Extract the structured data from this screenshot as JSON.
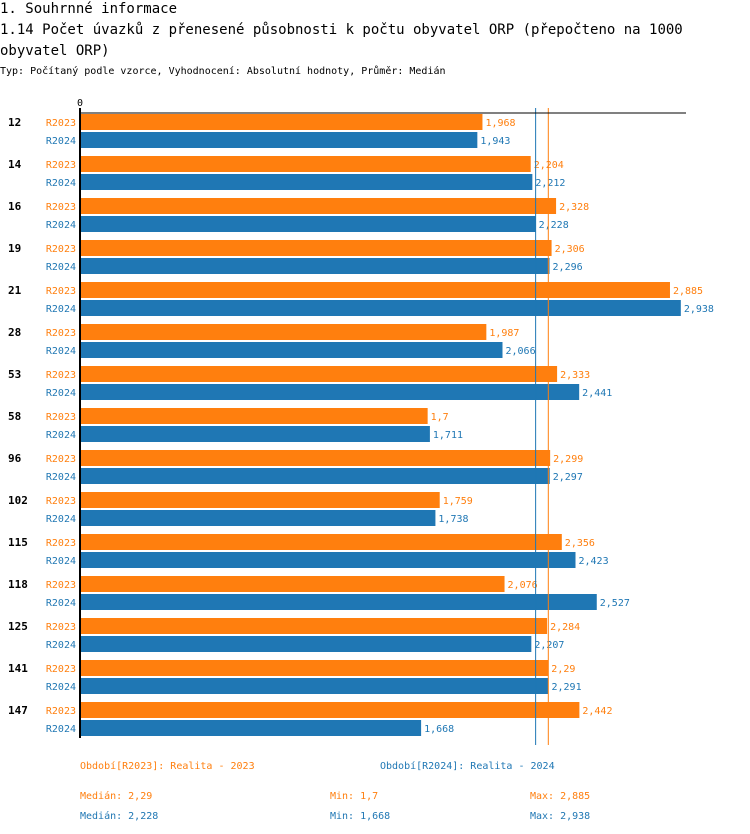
{
  "section_title": "1. Souhrnné informace",
  "chart_title": "1.14 Počet úvazků z přenesené působnosti k počtu obyvatel ORP (přepočteno na 1000 obyvatel ORP)",
  "subtitle": "Typ: Počítaný podle vzorce, Vyhodnocení: Absolutní hodnoty, Průměr: Medián",
  "colors": {
    "R2023": "#ff7f0e",
    "R2024": "#1f77b4"
  },
  "chart_data": {
    "type": "bar",
    "orientation": "horizontal",
    "title": "1.14 Počet úvazků z přenesené působnosti k počtu obyvatel ORP (přepočteno na 1000 obyvatel ORP)",
    "x_tick_labels": [
      "0"
    ],
    "categories": [
      "12",
      "14",
      "16",
      "19",
      "21",
      "28",
      "53",
      "58",
      "96",
      "102",
      "115",
      "118",
      "125",
      "141",
      "147"
    ],
    "series": [
      {
        "name": "R2023",
        "color": "#ff7f0e",
        "values": [
          1.968,
          2.204,
          2.328,
          2.306,
          2.885,
          1.987,
          2.333,
          1.7,
          2.299,
          1.759,
          2.356,
          2.076,
          2.284,
          2.29,
          2.442
        ],
        "labels": [
          "1,968",
          "2,204",
          "2,328",
          "2,306",
          "2,885",
          "1,987",
          "2,333",
          "1,7",
          "2,299",
          "1,759",
          "2,356",
          "2,076",
          "2,284",
          "2,29",
          "2,442"
        ]
      },
      {
        "name": "R2024",
        "color": "#1f77b4",
        "values": [
          1.943,
          2.212,
          2.228,
          2.296,
          2.938,
          2.066,
          2.441,
          1.711,
          2.297,
          1.738,
          2.423,
          2.527,
          2.207,
          2.291,
          1.668
        ],
        "labels": [
          "1,943",
          "2,212",
          "2,228",
          "2,296",
          "2,938",
          "2,066",
          "2,441",
          "1,711",
          "2,297",
          "1,738",
          "2,423",
          "2,527",
          "2,207",
          "2,291",
          "1,668"
        ]
      }
    ],
    "reference_lines": [
      {
        "series": "R2023",
        "type": "median",
        "value": 2.29
      },
      {
        "series": "R2024",
        "type": "median",
        "value": 2.228
      }
    ],
    "xlim": [
      0,
      2.95
    ],
    "grid": false
  },
  "legend": {
    "r2023": "Období[R2023]: Realita - 2023",
    "r2024": "Období[R2024]: Realita - 2024"
  },
  "stats": {
    "r2023": {
      "median": "Medián: 2,29",
      "min": "Min: 1,7",
      "max": "Max: 2,885"
    },
    "r2024": {
      "median": "Medián: 2,228",
      "min": "Min: 1,668",
      "max": "Max: 2,938"
    }
  }
}
